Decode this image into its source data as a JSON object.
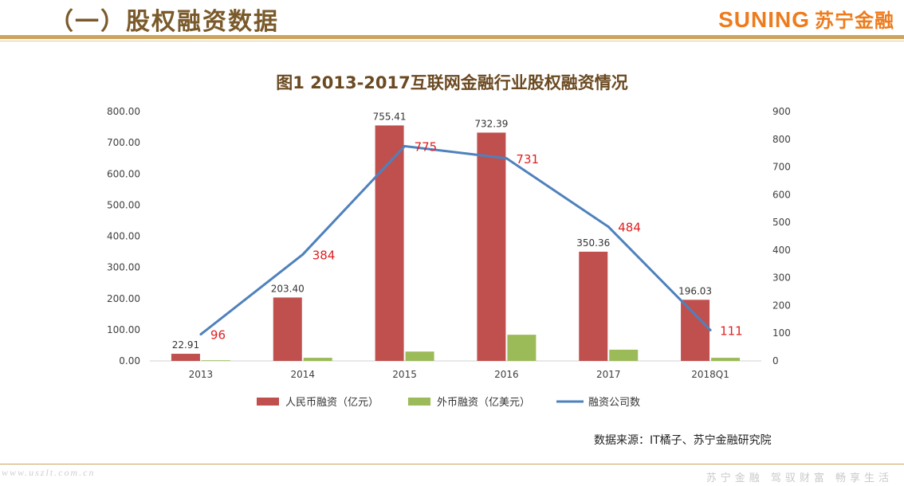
{
  "header": {
    "section_title": "（一）股权融资数据",
    "brand_latin": "SUNING",
    "brand_cn": "苏宁金融"
  },
  "chart_data": {
    "type": "bar",
    "title": "图1 2013-2017互联网金融行业股权融资情况",
    "categories": [
      "2013",
      "2014",
      "2015",
      "2016",
      "2017",
      "2018Q1"
    ],
    "y_left": {
      "ylim": [
        0,
        800
      ],
      "ticks": [
        "0.00",
        "100.00",
        "200.00",
        "300.00",
        "400.00",
        "500.00",
        "600.00",
        "700.00",
        "800.00"
      ]
    },
    "y_right": {
      "ylim": [
        0,
        900
      ],
      "ticks": [
        "0",
        "100",
        "200",
        "300",
        "400",
        "500",
        "600",
        "700",
        "800",
        "900"
      ]
    },
    "series": [
      {
        "name": "人民币融资（亿元）",
        "type": "bar",
        "axis": "left",
        "color": "#c0504d",
        "values": [
          22.91,
          203.4,
          755.41,
          732.39,
          350.36,
          196.03
        ],
        "labels": [
          "22.91",
          "203.40",
          "755.41",
          "732.39",
          "350.36",
          "196.03"
        ]
      },
      {
        "name": "外币融资（亿美元）",
        "type": "bar",
        "axis": "left",
        "color": "#9bbb59",
        "values": [
          2,
          10,
          30,
          84,
          36,
          10
        ]
      },
      {
        "name": "融资公司数",
        "type": "line",
        "axis": "right",
        "color": "#4f81bd",
        "values": [
          96,
          384,
          775,
          731,
          484,
          111
        ],
        "labels": [
          "96",
          "384",
          "775",
          "731",
          "484",
          "111"
        ]
      }
    ],
    "legend_position": "bottom",
    "line_label_color": "#e02020"
  },
  "source": "数据来源：IT橘子、苏宁金融研究院",
  "footer": {
    "watermark": "www.uszlt.com.cn",
    "slogan": "苏宁金融 驾驭财富 畅享生活"
  }
}
